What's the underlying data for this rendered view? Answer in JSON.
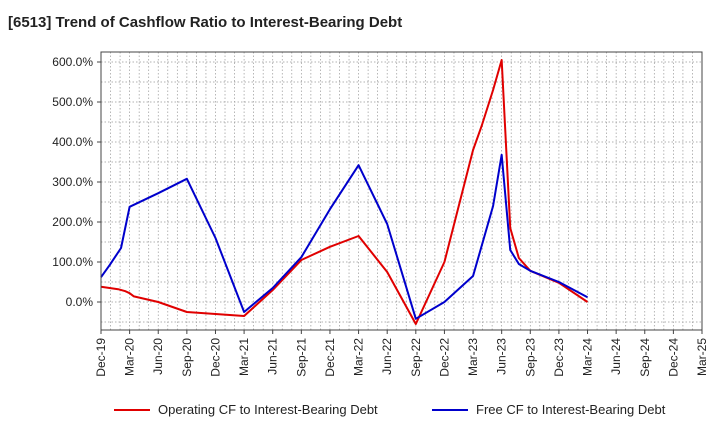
{
  "chart_data": {
    "type": "line",
    "title": "[6513]  Trend of Cashflow Ratio to Interest-Bearing Debt",
    "x_tick_labels": [
      "Dec-19",
      "Mar-20",
      "Jun-20",
      "Sep-20",
      "Dec-20",
      "Mar-21",
      "Jun-21",
      "Sep-21",
      "Dec-21",
      "Mar-22",
      "Jun-22",
      "Sep-22",
      "Dec-22",
      "Mar-23",
      "Jun-23",
      "Sep-23",
      "Dec-23",
      "Mar-24",
      "Jun-24",
      "Sep-24",
      "Dec-24",
      "Mar-25"
    ],
    "y_ticks": [
      0,
      100,
      200,
      300,
      400,
      500,
      600
    ],
    "y_tick_labels": [
      "0.0%",
      "100.0%",
      "200.0%",
      "300.0%",
      "400.0%",
      "500.0%",
      "600.0%"
    ],
    "ylim": [
      -70,
      625
    ],
    "xlim": [
      0,
      21
    ],
    "grid": true,
    "legend_position": "bottom",
    "series": [
      {
        "name": "Operating CF to Interest-Bearing Debt",
        "color": "#e00000",
        "points": [
          [
            0,
            38
          ],
          [
            0.6,
            32
          ],
          [
            0.85,
            27
          ],
          [
            1,
            22
          ],
          [
            1.15,
            14
          ],
          [
            2,
            0
          ],
          [
            3,
            -25
          ],
          [
            4,
            -30
          ],
          [
            5,
            -35
          ],
          [
            6,
            30
          ],
          [
            7,
            105
          ],
          [
            8,
            138
          ],
          [
            9,
            165
          ],
          [
            10,
            75
          ],
          [
            11,
            -55
          ],
          [
            12,
            100
          ],
          [
            13,
            380
          ],
          [
            13.3,
            440
          ],
          [
            13.7,
            530
          ],
          [
            14,
            605
          ],
          [
            14.3,
            185
          ],
          [
            14.6,
            110
          ],
          [
            15,
            78
          ],
          [
            16,
            48
          ],
          [
            17,
            0
          ]
        ]
      },
      {
        "name": "Free CF to Interest-Bearing Debt",
        "color": "#0000cc",
        "points": [
          [
            0,
            62
          ],
          [
            0.3,
            92
          ],
          [
            0.7,
            135
          ],
          [
            1,
            238
          ],
          [
            2,
            272
          ],
          [
            3,
            308
          ],
          [
            4,
            160
          ],
          [
            5,
            -25
          ],
          [
            6,
            35
          ],
          [
            7,
            112
          ],
          [
            8,
            232
          ],
          [
            9,
            342
          ],
          [
            10,
            195
          ],
          [
            11,
            -42
          ],
          [
            12,
            0
          ],
          [
            13,
            65
          ],
          [
            13.7,
            240
          ],
          [
            14,
            368
          ],
          [
            14.3,
            130
          ],
          [
            14.6,
            95
          ],
          [
            15,
            78
          ],
          [
            16,
            50
          ],
          [
            17,
            12
          ]
        ]
      }
    ]
  }
}
